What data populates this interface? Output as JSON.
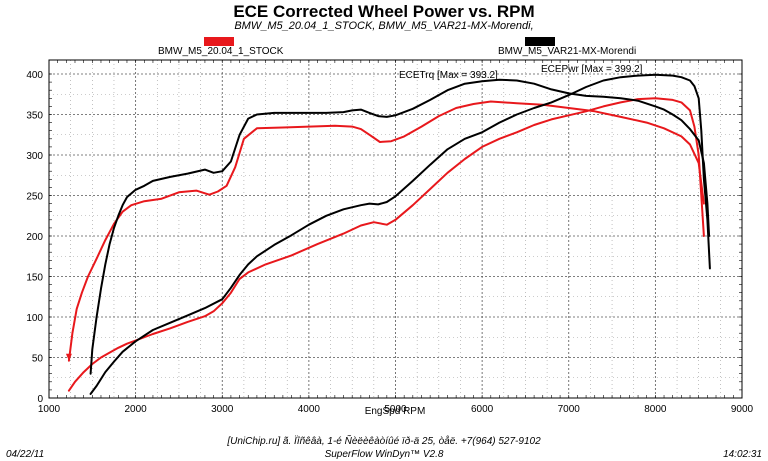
{
  "chart_data": {
    "type": "line",
    "title": "ECE Corrected Wheel Power vs. RPM",
    "subtitle": "BMW_M5_20.04_1_STOCK, BMW_M5_VAR21-MX-Morendi,",
    "xlabel": "EngSpd  RPM",
    "ylabel": "",
    "xlim": [
      1000,
      9000
    ],
    "ylim": [
      0,
      420
    ],
    "x_ticks": [
      "1000",
      "2000",
      "3000",
      "4000",
      "5000",
      "6000",
      "7000",
      "8000",
      "9000"
    ],
    "y_ticks": [
      "0",
      "50",
      "100",
      "150",
      "200",
      "250",
      "300",
      "350",
      "400"
    ],
    "grid": true,
    "legend": [
      {
        "name": "BMW_M5_20.04_1_STOCK",
        "color": "#e8181c"
      },
      {
        "name": "BMW_M5_VAR21-MX-Morendi",
        "color": "#000000"
      }
    ],
    "annotations": [
      {
        "text": "ECETrq [Max = 393.2]"
      },
      {
        "text": "ECEPwr [Max = 399.2]"
      }
    ],
    "series": [
      {
        "group": "BMW_M5_20.04_1_STOCK",
        "color": "#e8181c",
        "kind": "torque",
        "x": [
          1230,
          1270,
          1320,
          1380,
          1450,
          1550,
          1650,
          1750,
          1850,
          1950,
          2100,
          2300,
          2500,
          2700,
          2850,
          2950,
          3050,
          3150,
          3250,
          3400,
          3700,
          4000,
          4300,
          4500,
          4600,
          4700,
          4820,
          4950,
          5100,
          5300,
          5500,
          5700,
          5900,
          6100,
          6400,
          6700,
          7000,
          7300,
          7600,
          7900,
          8100,
          8300,
          8400,
          8500,
          8560
        ],
        "y": [
          46,
          80,
          110,
          130,
          150,
          172,
          195,
          215,
          230,
          238,
          243,
          246,
          254,
          256,
          251,
          255,
          262,
          285,
          320,
          333,
          334,
          335,
          336,
          335,
          332,
          325,
          316,
          317,
          323,
          335,
          348,
          358,
          363,
          366,
          364,
          362,
          358,
          354,
          347,
          340,
          333,
          323,
          313,
          290,
          240
        ]
      },
      {
        "group": "BMW_M5_20.04_1_STOCK",
        "color": "#e8181c",
        "kind": "power",
        "x": [
          1230,
          1300,
          1400,
          1500,
          1600,
          1700,
          1800,
          1900,
          2000,
          2200,
          2400,
          2600,
          2800,
          2900,
          3000,
          3100,
          3200,
          3300,
          3500,
          3800,
          4100,
          4400,
          4600,
          4750,
          4900,
          5000,
          5200,
          5400,
          5600,
          5800,
          6000,
          6200,
          6400,
          6600,
          6800,
          7000,
          7200,
          7400,
          7600,
          7800,
          8000,
          8200,
          8300,
          8400,
          8450,
          8500,
          8530,
          8560
        ],
        "y": [
          9,
          20,
          32,
          42,
          50,
          56,
          62,
          67,
          71,
          79,
          86,
          94,
          101,
          107,
          117,
          130,
          147,
          155,
          165,
          176,
          190,
          203,
          213,
          217,
          214,
          220,
          238,
          258,
          278,
          295,
          310,
          320,
          328,
          337,
          344,
          349,
          354,
          360,
          365,
          369,
          370,
          368,
          365,
          355,
          335,
          300,
          250,
          200
        ]
      },
      {
        "group": "BMW_M5_VAR21-MX-Morendi",
        "color": "#000000",
        "kind": "torque",
        "x": [
          1480,
          1500,
          1550,
          1600,
          1650,
          1700,
          1750,
          1800,
          1850,
          1900,
          2000,
          2100,
          2200,
          2400,
          2600,
          2800,
          2900,
          3000,
          3100,
          3200,
          3300,
          3400,
          3600,
          3900,
          4200,
          4400,
          4500,
          4600,
          4700,
          4800,
          4900,
          5000,
          5200,
          5400,
          5600,
          5800,
          6000,
          6200,
          6400,
          6600,
          6800,
          7000,
          7200,
          7400,
          7600,
          7800,
          8000,
          8100,
          8200,
          8300,
          8400,
          8500,
          8560,
          8600,
          8620
        ],
        "y": [
          30,
          60,
          100,
          135,
          165,
          190,
          210,
          225,
          238,
          248,
          257,
          262,
          268,
          273,
          277,
          282,
          278,
          280,
          292,
          325,
          345,
          350,
          352,
          352,
          352,
          353,
          355,
          356,
          352,
          348,
          347,
          349,
          357,
          368,
          380,
          388,
          391,
          393,
          392,
          388,
          381,
          376,
          373,
          372,
          370,
          367,
          360,
          356,
          350,
          343,
          332,
          318,
          290,
          240,
          200
        ]
      },
      {
        "group": "BMW_M5_VAR21-MX-Morendi",
        "color": "#000000",
        "kind": "power",
        "x": [
          1480,
          1550,
          1650,
          1750,
          1850,
          2000,
          2200,
          2400,
          2600,
          2800,
          3000,
          3100,
          3200,
          3300,
          3400,
          3600,
          3800,
          4000,
          4200,
          4400,
          4600,
          4700,
          4800,
          4900,
          5000,
          5200,
          5400,
          5600,
          5800,
          6000,
          6200,
          6400,
          6600,
          6800,
          7000,
          7200,
          7400,
          7600,
          7800,
          8000,
          8200,
          8300,
          8400,
          8450,
          8500,
          8530,
          8560,
          8600,
          8630
        ],
        "y": [
          5,
          15,
          32,
          45,
          57,
          70,
          84,
          93,
          102,
          111,
          122,
          136,
          152,
          165,
          175,
          189,
          201,
          214,
          225,
          233,
          238,
          240,
          239,
          242,
          249,
          268,
          288,
          307,
          320,
          328,
          340,
          350,
          358,
          365,
          374,
          384,
          392,
          396,
          398,
          399,
          398,
          396,
          392,
          385,
          370,
          330,
          270,
          220,
          160
        ]
      }
    ]
  },
  "footer": {
    "date": "04/22/11",
    "time": "14:02:31",
    "line1": "[UniChip.ru] ã. Ïîñêâà, 1-é Ñèëèêàòíûé ïð-ä 25, òåë. +7(964) 527-9102",
    "line2": "SuperFlow WinDyn™ V2.8"
  }
}
